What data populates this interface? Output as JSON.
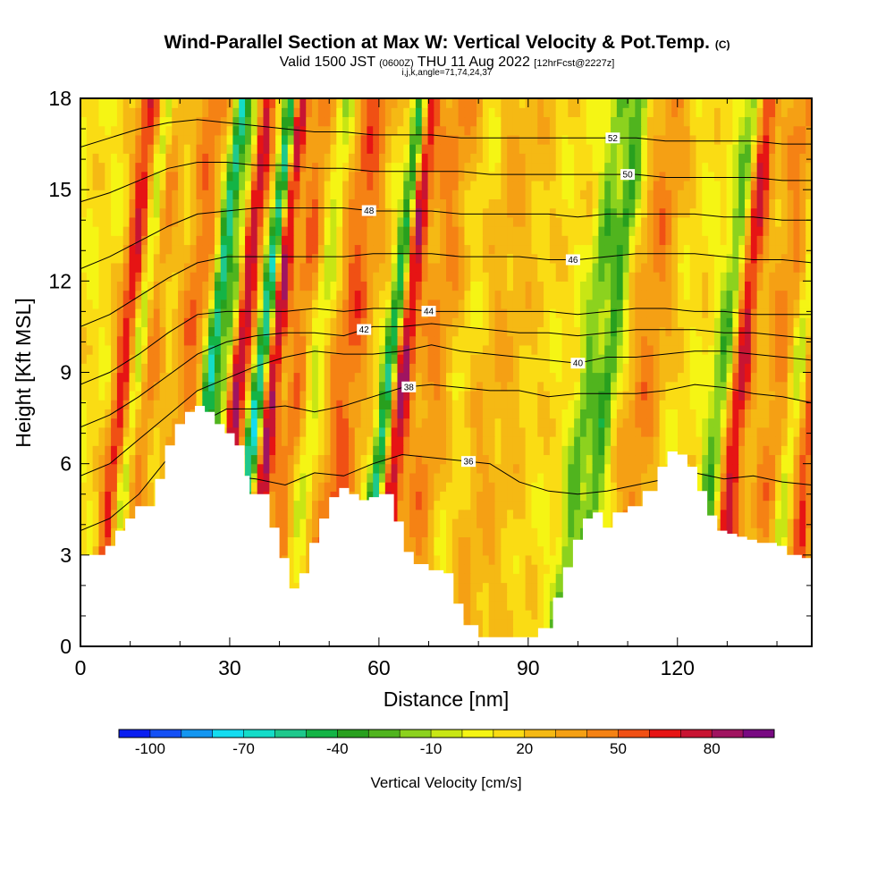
{
  "title": {
    "main": "Wind-Parallel Section at Max W: Vertical Velocity & Pot.Temp.",
    "mark": "(C)"
  },
  "subtitle": {
    "valid": "Valid 1500 JST",
    "utc": "(0600Z)",
    "date": "THU 11 Aug 2022",
    "forecast": "[12hrFcst@2227z]"
  },
  "params": "i,j,k,angle=71,74,24,37",
  "chart_data": {
    "type": "heatmap",
    "xlabel": "Distance [nm]",
    "ylabel": "Height [Kft MSL]",
    "xlim": [
      0,
      147
    ],
    "ylim": [
      0,
      18
    ],
    "x_ticks": [
      0,
      30,
      60,
      90,
      120
    ],
    "y_ticks": [
      0,
      3,
      6,
      9,
      12,
      15,
      18
    ],
    "colorbar": {
      "label": "Vertical Velocity [cm/s]",
      "tick_labels": [
        "-100",
        "-70",
        "-40",
        "-10",
        "20",
        "50",
        "80"
      ],
      "min": -110,
      "step": 10,
      "colors": [
        "#0a1ef0",
        "#1450f5",
        "#1496f0",
        "#14dcf0",
        "#14dcc8",
        "#1ec88c",
        "#14b446",
        "#28a01e",
        "#50b41e",
        "#8cd21e",
        "#c8e614",
        "#f5f514",
        "#fadc14",
        "#f5b914",
        "#f5a014",
        "#f58214",
        "#f05014",
        "#e61414",
        "#c81432",
        "#a01460",
        "#780a82"
      ]
    },
    "terrain": {
      "x": [
        0,
        3,
        5,
        7,
        9,
        11,
        13,
        15,
        17,
        19,
        21,
        23,
        25,
        27,
        29,
        31,
        33,
        34,
        36,
        38,
        40,
        42,
        44,
        46,
        48,
        50,
        52,
        54,
        56,
        58,
        60,
        62,
        63,
        65,
        67,
        70,
        73,
        75,
        77,
        80,
        83,
        86,
        89,
        92,
        95,
        97,
        99,
        101,
        103,
        105,
        107,
        110,
        113,
        116,
        118,
        120,
        122,
        124,
        126,
        128,
        130,
        132,
        134,
        136,
        138,
        140,
        142,
        145,
        147
      ],
      "y": [
        3.0,
        3.0,
        3.3,
        3.8,
        4.2,
        4.6,
        4.6,
        5.5,
        6.6,
        7.3,
        7.7,
        7.9,
        7.7,
        7.3,
        7.0,
        6.6,
        5.6,
        5.0,
        5.0,
        3.9,
        2.9,
        1.9,
        2.4,
        3.4,
        4.2,
        4.9,
        5.2,
        5.0,
        4.8,
        4.9,
        5.0,
        5.0,
        4.1,
        3.1,
        2.7,
        2.5,
        2.4,
        1.4,
        0.7,
        0.3,
        0.3,
        0.3,
        0.3,
        0.6,
        1.6,
        2.6,
        3.5,
        4.2,
        4.4,
        3.9,
        4.4,
        4.6,
        5.1,
        5.9,
        6.4,
        6.3,
        5.9,
        5.1,
        4.3,
        3.8,
        3.7,
        3.6,
        3.5,
        3.4,
        3.4,
        3.3,
        3.0,
        2.9,
        2.8
      ]
    },
    "theta_contours": [
      {
        "label": "36",
        "y": [
          2.0,
          2.4,
          3.0,
          4.0,
          5.2,
          5.6,
          5.5,
          5.3,
          5.7,
          5.6,
          6.0,
          6.3,
          6.2,
          6.1,
          6.0,
          5.4,
          5.1,
          5.0,
          5.1,
          5.3,
          5.5,
          5.7,
          5.5,
          5.6,
          5.4,
          5.3
        ],
        "label_x": 78
      },
      {
        "label": "38",
        "y": [
          3.8,
          4.2,
          5.0,
          6.2,
          7.3,
          7.8,
          7.8,
          7.9,
          7.7,
          7.9,
          8.2,
          8.5,
          8.6,
          8.5,
          8.4,
          8.4,
          8.2,
          8.3,
          8.3,
          8.3,
          8.4,
          8.6,
          8.5,
          8.3,
          8.2,
          8.0
        ],
        "label_x": 66
      },
      {
        "label": "40",
        "y": [
          5.6,
          6.0,
          6.8,
          7.6,
          8.4,
          8.8,
          9.2,
          9.5,
          9.7,
          9.6,
          9.6,
          9.7,
          9.9,
          9.7,
          9.6,
          9.5,
          9.4,
          9.3,
          9.5,
          9.5,
          9.6,
          9.7,
          9.7,
          9.6,
          9.5,
          9.4
        ],
        "label_x": 100
      },
      {
        "label": "42",
        "y": [
          7.2,
          7.6,
          8.2,
          8.9,
          9.6,
          10.0,
          10.2,
          10.3,
          10.3,
          10.2,
          10.5,
          10.5,
          10.6,
          10.5,
          10.4,
          10.3,
          10.3,
          10.2,
          10.3,
          10.4,
          10.4,
          10.4,
          10.3,
          10.3,
          10.2,
          10.1
        ],
        "label_x": 57
      },
      {
        "label": "44",
        "y": [
          8.6,
          9.0,
          9.6,
          10.3,
          10.9,
          11.0,
          11.0,
          11.0,
          11.1,
          11.0,
          11.1,
          11.1,
          11.0,
          11.0,
          11.0,
          11.0,
          11.0,
          10.9,
          11.0,
          11.1,
          11.1,
          11.0,
          11.0,
          10.9,
          10.9,
          10.9
        ],
        "label_x": 70
      },
      {
        "label": "46",
        "y": [
          10.5,
          10.9,
          11.5,
          12.1,
          12.6,
          12.8,
          12.8,
          12.8,
          12.8,
          12.8,
          12.9,
          12.9,
          12.9,
          12.8,
          12.8,
          12.8,
          12.7,
          12.7,
          12.8,
          12.9,
          12.9,
          12.9,
          12.8,
          12.7,
          12.7,
          12.6
        ],
        "label_x": 99
      },
      {
        "label": "48",
        "y": [
          12.4,
          12.8,
          13.3,
          13.8,
          14.2,
          14.3,
          14.4,
          14.4,
          14.4,
          14.4,
          14.3,
          14.3,
          14.3,
          14.2,
          14.2,
          14.2,
          14.2,
          14.1,
          14.2,
          14.2,
          14.2,
          14.2,
          14.1,
          14.1,
          14.0,
          14.0
        ],
        "label_x": 58
      },
      {
        "label": "50",
        "y": [
          14.6,
          14.9,
          15.3,
          15.7,
          15.9,
          15.9,
          15.8,
          15.8,
          15.7,
          15.7,
          15.6,
          15.6,
          15.6,
          15.6,
          15.5,
          15.5,
          15.5,
          15.5,
          15.5,
          15.5,
          15.4,
          15.4,
          15.4,
          15.4,
          15.3,
          15.3
        ],
        "label_x": 110
      },
      {
        "label": "52",
        "y": [
          16.4,
          16.7,
          17.0,
          17.2,
          17.3,
          17.2,
          17.1,
          17.0,
          16.9,
          16.9,
          16.8,
          16.8,
          16.8,
          16.7,
          16.7,
          16.7,
          16.7,
          16.7,
          16.7,
          16.7,
          16.6,
          16.6,
          16.6,
          16.6,
          16.5,
          16.5
        ],
        "label_x": 107
      }
    ],
    "updraft_columns": [
      {
        "x": 7,
        "w": 2.2,
        "v": 55
      },
      {
        "x": 12,
        "w": 2.5,
        "v": 30
      },
      {
        "x": 20,
        "w": 3.0,
        "v": 35
      },
      {
        "x": 30,
        "w": 2.2,
        "v": 70
      },
      {
        "x": 37,
        "w": 1.6,
        "v": 70
      },
      {
        "x": 42,
        "w": 3.0,
        "v": 35
      },
      {
        "x": 52,
        "w": 4.0,
        "v": 40
      },
      {
        "x": 63,
        "w": 2.0,
        "v": 65
      },
      {
        "x": 69,
        "w": 4.0,
        "v": 25
      },
      {
        "x": 80,
        "w": 9.0,
        "v": 18
      },
      {
        "x": 112,
        "w": 4.0,
        "v": 30
      },
      {
        "x": 131,
        "w": 2.2,
        "v": 60
      },
      {
        "x": 139,
        "w": 4.0,
        "v": 30
      },
      {
        "x": 146,
        "w": 2.0,
        "v": 45
      }
    ],
    "downdraft_columns": [
      {
        "x": 9,
        "w": 1.5,
        "v": -40
      },
      {
        "x": 24,
        "w": 1.4,
        "v": -70
      },
      {
        "x": 27,
        "w": 1.6,
        "v": -45
      },
      {
        "x": 34,
        "w": 1.4,
        "v": -80
      },
      {
        "x": 45,
        "w": 2.0,
        "v": -25
      },
      {
        "x": 60,
        "w": 1.4,
        "v": -75
      },
      {
        "x": 75,
        "w": 3.0,
        "v": -15
      },
      {
        "x": 100,
        "w": 2.0,
        "v": -35
      },
      {
        "x": 104,
        "w": 1.8,
        "v": -45
      },
      {
        "x": 127,
        "w": 2.0,
        "v": -40
      },
      {
        "x": 142,
        "w": 1.6,
        "v": -30
      }
    ]
  }
}
